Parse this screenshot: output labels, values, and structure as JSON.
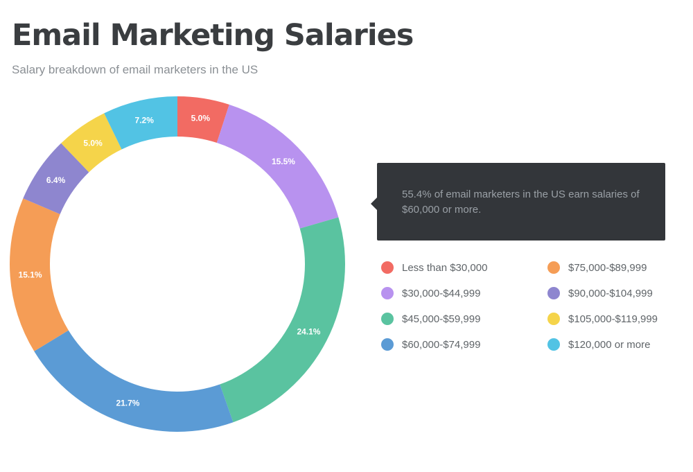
{
  "header": {
    "title": "Email Marketing Salaries",
    "subtitle": "Salary breakdown of email marketers in the US"
  },
  "callout": {
    "text": "55.4% of email marketers in the US earn salaries of $60,000 or more."
  },
  "chart_data": {
    "type": "pie",
    "variant": "donut",
    "title": "Email Marketing Salaries",
    "subtitle": "Salary breakdown of email marketers in the US",
    "legend_position": "right",
    "categories": [
      "Less than $30,000",
      "$30,000-$44,999",
      "$45,000-$59,999",
      "$60,000-$74,999",
      "$75,000-$89,999",
      "$90,000-$104,999",
      "$105,000-$119,999",
      "$120,000 or more"
    ],
    "values": [
      5.0,
      15.5,
      24.1,
      21.7,
      15.1,
      6.4,
      5.0,
      7.2
    ],
    "labels": [
      "5.0%",
      "15.5%",
      "24.1%",
      "21.7%",
      "15.1%",
      "6.4%",
      "5.0%",
      "7.2%"
    ],
    "colors": [
      "#f26b63",
      "#b892ef",
      "#5ac3a0",
      "#5b9bd5",
      "#f59d56",
      "#8e86cf",
      "#f5d44a",
      "#52c3e4"
    ]
  },
  "legend": {
    "items": [
      {
        "label": "Less than $30,000",
        "color": "#f26b63"
      },
      {
        "label": "$30,000-$44,999",
        "color": "#b892ef"
      },
      {
        "label": "$45,000-$59,999",
        "color": "#5ac3a0"
      },
      {
        "label": "$60,000-$74,999",
        "color": "#5b9bd5"
      },
      {
        "label": "$75,000-$89,999",
        "color": "#f59d56"
      },
      {
        "label": "$90,000-$104,999",
        "color": "#8e86cf"
      },
      {
        "label": "$105,000-$119,999",
        "color": "#f5d44a"
      },
      {
        "label": "$120,000 or more",
        "color": "#52c3e4"
      }
    ]
  }
}
